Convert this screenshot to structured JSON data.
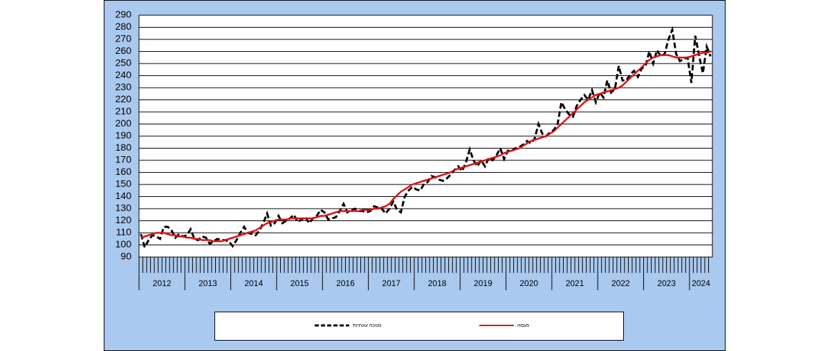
{
  "chart_data": {
    "type": "line",
    "categories": [
      "2012",
      null,
      null,
      null,
      null,
      null,
      null,
      null,
      null,
      null,
      null,
      null,
      "2013",
      null,
      null,
      null,
      null,
      null,
      null,
      null,
      null,
      null,
      null,
      null,
      "2014",
      null,
      null,
      null,
      null,
      null,
      null,
      null,
      null,
      null,
      null,
      null,
      "2015",
      null,
      null,
      null,
      null,
      null,
      null,
      null,
      null,
      null,
      null,
      null,
      "2016",
      null,
      null,
      null,
      null,
      null,
      null,
      null,
      null,
      null,
      null,
      null,
      "2017",
      null,
      null,
      null,
      null,
      null,
      null,
      null,
      null,
      null,
      null,
      null,
      "2018",
      null,
      null,
      null,
      null,
      null,
      null,
      null,
      null,
      null,
      null,
      null,
      "2019",
      null,
      null,
      null,
      null,
      null,
      null,
      null,
      null,
      null,
      null,
      null,
      "2020",
      null,
      null,
      null,
      null,
      null,
      null,
      null,
      null,
      null,
      null,
      null,
      "2021",
      null,
      null,
      null,
      null,
      null,
      null,
      null,
      null,
      null,
      null,
      null,
      "2022",
      null,
      null,
      null,
      null,
      null,
      null,
      null,
      null,
      null,
      null,
      null,
      "2023",
      null,
      null,
      null,
      null,
      null,
      null,
      null,
      null,
      null,
      null,
      null,
      "2024",
      null,
      null,
      null,
      null,
      null
    ],
    "series": [
      {
        "name": "מנוכה עונתיות",
        "color": "#000000",
        "dash": true,
        "values": [
          109,
          98,
          104,
          108,
          107,
          105,
          115,
          115,
          112,
          106,
          109,
          107,
          108,
          113,
          105,
          104,
          107,
          106,
          101,
          103,
          105,
          104,
          104,
          103,
          99,
          104,
          110,
          115,
          110,
          109,
          108,
          112,
          118,
          126,
          116,
          118,
          124,
          118,
          120,
          122,
          125,
          119,
          121,
          123,
          118,
          122,
          124,
          129,
          127,
          121,
          122,
          123,
          128,
          134,
          127,
          129,
          130,
          128,
          128,
          127,
          128,
          132,
          131,
          130,
          126,
          130,
          136,
          129,
          127,
          140,
          145,
          148,
          146,
          145,
          150,
          152,
          157,
          156,
          154,
          153,
          155,
          158,
          162,
          165,
          161,
          168,
          179,
          170,
          165,
          170,
          165,
          172,
          170,
          174,
          180,
          171,
          178,
          178,
          180,
          181,
          183,
          186,
          184,
          188,
          200,
          192,
          190,
          193,
          195,
          200,
          218,
          212,
          208,
          206,
          215,
          220,
          224,
          220,
          228,
          218,
          226,
          222,
          236,
          226,
          229,
          248,
          236,
          236,
          241,
          244,
          239,
          246,
          248,
          260,
          250,
          261,
          256,
          258,
          270,
          278,
          258,
          252,
          254,
          255,
          234,
          273,
          257,
          242,
          264,
          256
        ]
      },
      {
        "name": "מגמה",
        "color": "#e01010",
        "dash": false,
        "values": [
          106,
          107,
          108,
          109,
          110,
          110,
          110,
          109,
          108,
          108,
          107,
          107,
          106,
          106,
          105,
          105,
          104,
          104,
          104,
          103,
          103,
          103,
          104,
          105,
          106,
          107,
          108,
          109,
          110,
          111,
          112,
          114,
          116,
          118,
          119,
          120,
          121,
          121,
          121,
          122,
          122,
          122,
          122,
          122,
          122,
          122,
          123,
          124,
          124,
          125,
          126,
          127,
          128,
          128,
          128,
          128,
          128,
          128,
          129,
          129,
          129,
          130,
          130,
          131,
          132,
          134,
          138,
          141,
          144,
          146,
          148,
          150,
          151,
          152,
          153,
          154,
          155,
          156,
          157,
          158,
          159,
          160,
          162,
          163,
          164,
          165,
          166,
          167,
          168,
          169,
          170,
          171,
          172,
          173,
          174,
          176,
          177,
          178,
          179,
          180,
          182,
          184,
          186,
          187,
          188,
          189,
          190,
          192,
          194,
          197,
          200,
          203,
          206,
          209,
          212,
          215,
          218,
          220,
          222,
          224,
          225,
          226,
          227,
          228,
          229,
          230,
          232,
          235,
          238,
          241,
          244,
          247,
          250,
          253,
          255,
          256,
          257,
          257,
          257,
          256,
          255,
          255,
          255,
          255,
          256,
          257,
          258,
          259,
          259,
          260
        ]
      }
    ],
    "ylim": [
      90,
      290
    ],
    "yticks": [
      90,
      100,
      110,
      120,
      130,
      140,
      150,
      160,
      170,
      180,
      190,
      200,
      210,
      220,
      230,
      240,
      250,
      260,
      270,
      280,
      290
    ],
    "grid": true
  }
}
